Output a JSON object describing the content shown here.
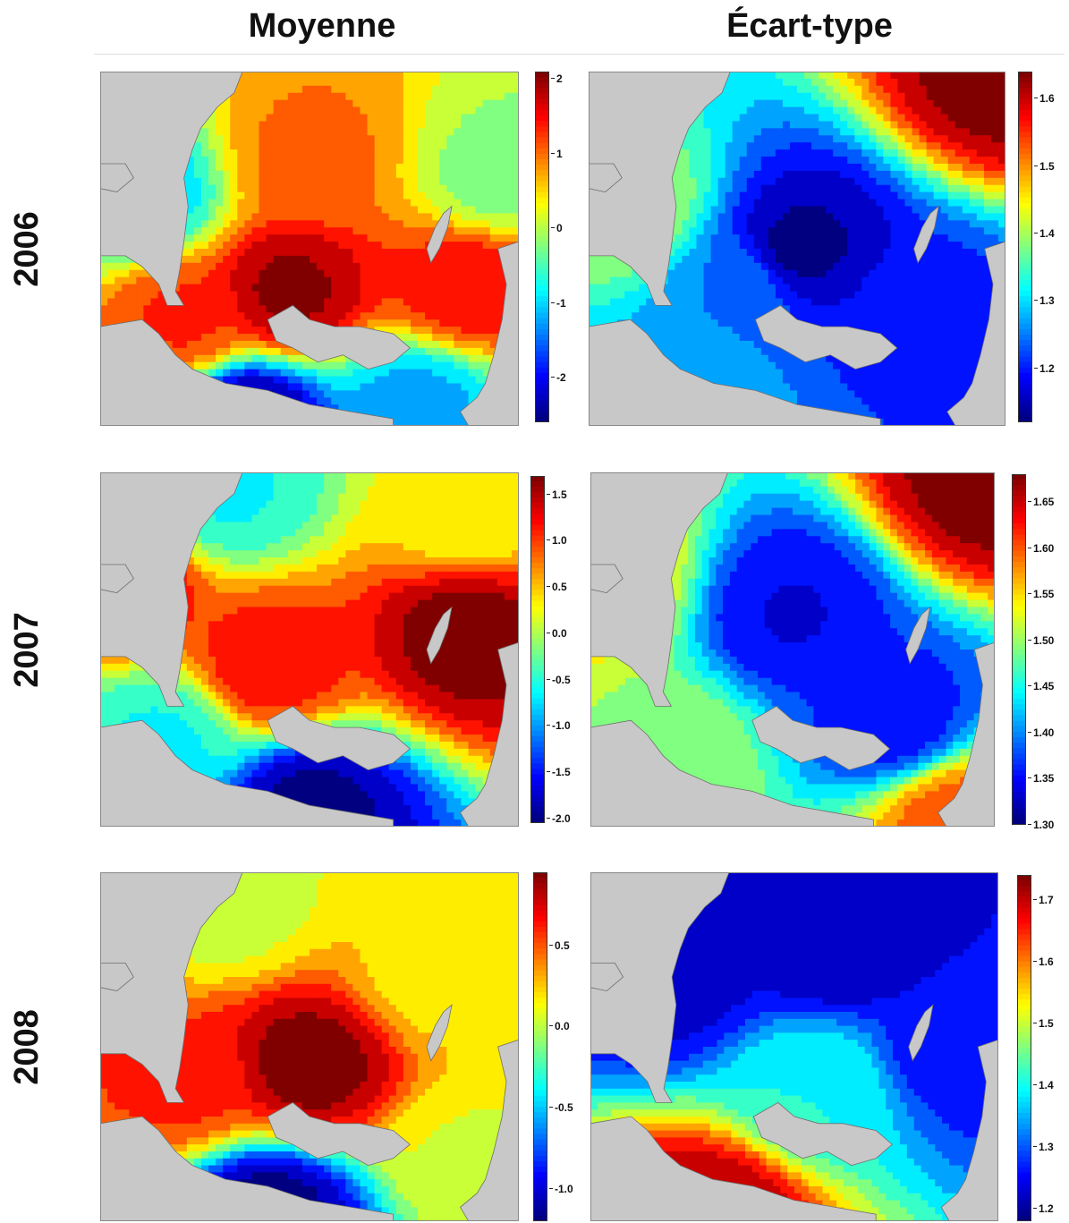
{
  "headers": {
    "left": "Moyenne",
    "right": "Écart-type"
  },
  "rows": [
    "2006",
    "2007",
    "2008"
  ],
  "colors": {
    "land": "#c8c8c8",
    "missing": "#ffffff",
    "colormap": "jet"
  },
  "chart_data": [
    {
      "type": "heatmap",
      "year": "2006",
      "stat": "Moyenne",
      "range": [
        -2.6,
        2.1
      ],
      "colorbar_ticks": [
        "2",
        "1",
        "0",
        "-1",
        "-2"
      ],
      "tick_values": [
        2,
        1,
        0,
        -1,
        -2
      ],
      "hotspots": [
        {
          "x": 0.45,
          "y": 0.62,
          "v": 2.0
        },
        {
          "x": 0.88,
          "y": 0.6,
          "v": 1.5
        },
        {
          "x": 0.5,
          "y": 0.25,
          "v": 1.0
        },
        {
          "x": 0.2,
          "y": 0.7,
          "v": 1.3
        },
        {
          "x": 0.35,
          "y": 0.98,
          "v": -2.6
        },
        {
          "x": 0.1,
          "y": 0.35,
          "v": -1.0
        },
        {
          "x": 0.95,
          "y": 0.3,
          "v": -0.2
        },
        {
          "x": 0.75,
          "y": 0.95,
          "v": -1.2
        }
      ]
    },
    {
      "type": "heatmap",
      "year": "2006",
      "stat": "Écart-type",
      "range": [
        1.12,
        1.64
      ],
      "colorbar_ticks": [
        "1.6",
        "1.5",
        "1.4",
        "1.3",
        "1.2"
      ],
      "tick_values": [
        1.6,
        1.5,
        1.4,
        1.3,
        1.2
      ],
      "hotspots": [
        {
          "x": 1.0,
          "y": 0.0,
          "v": 1.64
        },
        {
          "x": 0.5,
          "y": 0.5,
          "v": 1.13
        },
        {
          "x": 0.1,
          "y": 0.4,
          "v": 1.4
        },
        {
          "x": 0.35,
          "y": 0.6,
          "v": 1.25
        },
        {
          "x": 0.8,
          "y": 0.7,
          "v": 1.2
        },
        {
          "x": 0.25,
          "y": 0.9,
          "v": 1.27
        }
      ]
    },
    {
      "type": "heatmap",
      "year": "2007",
      "stat": "Moyenne",
      "range": [
        -2.05,
        1.7
      ],
      "colorbar_ticks": [
        "1.5",
        "1.0",
        "0.5",
        "0.0",
        "-0.5",
        "-1.0",
        "-1.5",
        "-2.0"
      ],
      "tick_values": [
        1.5,
        1.0,
        0.5,
        0.0,
        -0.5,
        -1.0,
        -1.5,
        -2.0
      ],
      "hotspots": [
        {
          "x": 0.88,
          "y": 0.45,
          "v": 1.7
        },
        {
          "x": 0.4,
          "y": 0.55,
          "v": 1.2
        },
        {
          "x": 0.02,
          "y": 0.3,
          "v": 1.5
        },
        {
          "x": 0.3,
          "y": 0.05,
          "v": -0.6
        },
        {
          "x": 0.5,
          "y": 0.95,
          "v": -2.0
        },
        {
          "x": 0.88,
          "y": 0.12,
          "v": 0.3
        },
        {
          "x": 0.15,
          "y": 0.75,
          "v": -0.6
        }
      ]
    },
    {
      "type": "heatmap",
      "year": "2007",
      "stat": "Écart-type",
      "range": [
        1.3,
        1.68
      ],
      "colorbar_ticks": [
        "1.65",
        "1.60",
        "1.55",
        "1.50",
        "1.45",
        "1.40",
        "1.35",
        "1.30"
      ],
      "tick_values": [
        1.65,
        1.6,
        1.55,
        1.5,
        1.45,
        1.4,
        1.35,
        1.3
      ],
      "hotspots": [
        {
          "x": 0.98,
          "y": 0.02,
          "v": 1.68
        },
        {
          "x": 0.5,
          "y": 0.4,
          "v": 1.34
        },
        {
          "x": 0.02,
          "y": 0.3,
          "v": 1.55
        },
        {
          "x": 0.2,
          "y": 0.8,
          "v": 1.5
        },
        {
          "x": 0.75,
          "y": 0.7,
          "v": 1.35
        },
        {
          "x": 0.9,
          "y": 0.98,
          "v": 1.6
        }
      ]
    },
    {
      "type": "heatmap",
      "year": "2008",
      "stat": "Moyenne",
      "range": [
        -1.2,
        0.95
      ],
      "colorbar_ticks": [
        "0.5",
        "0.0",
        "-0.5",
        "-1.0"
      ],
      "tick_values": [
        0.5,
        0.0,
        -0.5,
        -1.0
      ],
      "hotspots": [
        {
          "x": 0.5,
          "y": 0.55,
          "v": 0.95
        },
        {
          "x": 0.2,
          "y": 0.6,
          "v": 0.6
        },
        {
          "x": 0.8,
          "y": 0.3,
          "v": 0.2
        },
        {
          "x": 0.4,
          "y": 0.98,
          "v": -1.2
        },
        {
          "x": 0.3,
          "y": 0.1,
          "v": 0.05
        },
        {
          "x": 0.9,
          "y": 0.8,
          "v": 0.1
        }
      ]
    },
    {
      "type": "heatmap",
      "year": "2008",
      "stat": "Écart-type",
      "range": [
        1.18,
        1.74
      ],
      "colorbar_ticks": [
        "1.7",
        "1.6",
        "1.5",
        "1.4",
        "1.3",
        "1.2"
      ],
      "tick_values": [
        1.7,
        1.6,
        1.5,
        1.4,
        1.3,
        1.2
      ],
      "hotspots": [
        {
          "x": 0.6,
          "y": 0.2,
          "v": 1.2
        },
        {
          "x": 0.55,
          "y": 0.62,
          "v": 1.4
        },
        {
          "x": 0.3,
          "y": 0.98,
          "v": 1.72
        },
        {
          "x": 0.9,
          "y": 0.5,
          "v": 1.25
        },
        {
          "x": 0.2,
          "y": 0.3,
          "v": 1.22
        }
      ]
    }
  ]
}
